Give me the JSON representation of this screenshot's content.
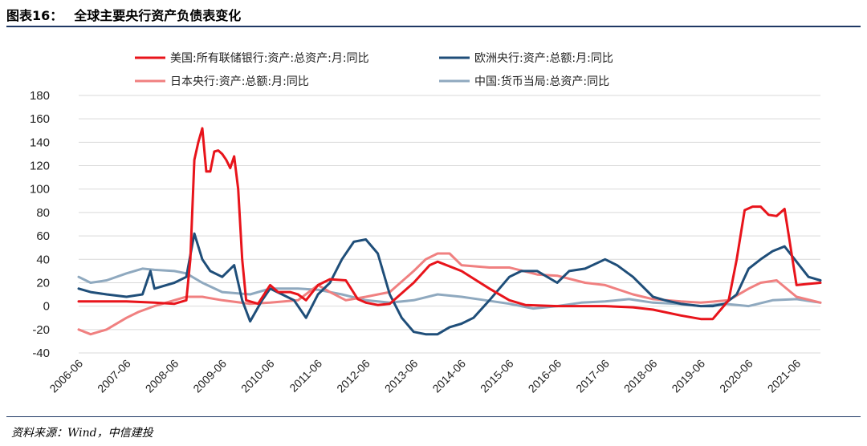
{
  "header": {
    "figure_label": "图表16：",
    "title": "全球主要央行资产负债表变化"
  },
  "footer": {
    "source": "资料来源：Wind，中信建投"
  },
  "chart_data": {
    "type": "line",
    "title": "全球主要央行资产负债表变化",
    "xlabel": "",
    "ylabel": "",
    "ylim": [
      -40,
      180
    ],
    "yticks": [
      -40,
      -20,
      0,
      20,
      40,
      60,
      80,
      100,
      120,
      140,
      160,
      180
    ],
    "x_tick_labels": [
      "2006-06",
      "2007-06",
      "2008-06",
      "2009-06",
      "2010-06",
      "2011-06",
      "2012-06",
      "2013-06",
      "2014-06",
      "2015-06",
      "2016-06",
      "2017-06",
      "2018-06",
      "2019-06",
      "2020-06",
      "2021-06"
    ],
    "x_range": [
      "2006-06",
      "2021-12"
    ],
    "grid": "horizontal",
    "legend_position": "top",
    "series": [
      {
        "name": "美国:所有联储银行:资产:总资产:月:同比",
        "color": "#e8141b",
        "points": [
          [
            "2006-06",
            4
          ],
          [
            "2007-01",
            4
          ],
          [
            "2007-06",
            4
          ],
          [
            "2008-01",
            3
          ],
          [
            "2008-06",
            2
          ],
          [
            "2008-09",
            5
          ],
          [
            "2008-10",
            40
          ],
          [
            "2008-11",
            125
          ],
          [
            "2008-12",
            140
          ],
          [
            "2009-01",
            152
          ],
          [
            "2009-02",
            115
          ],
          [
            "2009-03",
            115
          ],
          [
            "2009-04",
            132
          ],
          [
            "2009-05",
            133
          ],
          [
            "2009-06",
            130
          ],
          [
            "2009-07",
            125
          ],
          [
            "2009-08",
            118
          ],
          [
            "2009-09",
            128
          ],
          [
            "2009-10",
            100
          ],
          [
            "2009-11",
            40
          ],
          [
            "2009-12",
            5
          ],
          [
            "2010-03",
            2
          ],
          [
            "2010-06",
            18
          ],
          [
            "2010-08",
            12
          ],
          [
            "2010-11",
            12
          ],
          [
            "2011-01",
            10
          ],
          [
            "2011-03",
            5
          ],
          [
            "2011-06",
            18
          ],
          [
            "2011-09",
            23
          ],
          [
            "2012-01",
            22
          ],
          [
            "2012-04",
            6
          ],
          [
            "2012-06",
            3
          ],
          [
            "2012-09",
            1
          ],
          [
            "2012-12",
            2
          ],
          [
            "2013-06",
            20
          ],
          [
            "2013-10",
            35
          ],
          [
            "2013-12",
            38
          ],
          [
            "2014-06",
            30
          ],
          [
            "2015-01",
            15
          ],
          [
            "2015-06",
            5
          ],
          [
            "2015-10",
            1
          ],
          [
            "2016-06",
            0
          ],
          [
            "2017-06",
            0
          ],
          [
            "2018-01",
            -1
          ],
          [
            "2018-06",
            -3
          ],
          [
            "2019-01",
            -8
          ],
          [
            "2019-06",
            -11
          ],
          [
            "2019-09",
            -11
          ],
          [
            "2019-11",
            -3
          ],
          [
            "2020-01",
            5
          ],
          [
            "2020-03",
            40
          ],
          [
            "2020-05",
            82
          ],
          [
            "2020-07",
            85
          ],
          [
            "2020-09",
            85
          ],
          [
            "2020-11",
            78
          ],
          [
            "2021-01",
            77
          ],
          [
            "2021-03",
            83
          ],
          [
            "2021-05",
            40
          ],
          [
            "2021-06",
            18
          ],
          [
            "2021-09",
            19
          ],
          [
            "2021-12",
            20
          ]
        ]
      },
      {
        "name": "欧洲央行:资产:总额:月:同比",
        "color": "#1f4e79",
        "points": [
          [
            "2006-06",
            15
          ],
          [
            "2006-09",
            12
          ],
          [
            "2007-01",
            10
          ],
          [
            "2007-06",
            8
          ],
          [
            "2007-10",
            10
          ],
          [
            "2007-12",
            30
          ],
          [
            "2008-01",
            15
          ],
          [
            "2008-06",
            20
          ],
          [
            "2008-09",
            25
          ],
          [
            "2008-11",
            62
          ],
          [
            "2009-01",
            40
          ],
          [
            "2009-03",
            30
          ],
          [
            "2009-06",
            25
          ],
          [
            "2009-09",
            35
          ],
          [
            "2009-11",
            5
          ],
          [
            "2010-01",
            -13
          ],
          [
            "2010-04",
            5
          ],
          [
            "2010-06",
            15
          ],
          [
            "2010-09",
            10
          ],
          [
            "2010-12",
            5
          ],
          [
            "2011-03",
            -10
          ],
          [
            "2011-06",
            10
          ],
          [
            "2011-09",
            20
          ],
          [
            "2011-12",
            40
          ],
          [
            "2012-03",
            55
          ],
          [
            "2012-06",
            57
          ],
          [
            "2012-09",
            45
          ],
          [
            "2012-12",
            10
          ],
          [
            "2013-03",
            -10
          ],
          [
            "2013-06",
            -22
          ],
          [
            "2013-09",
            -24
          ],
          [
            "2013-12",
            -24
          ],
          [
            "2014-03",
            -18
          ],
          [
            "2014-06",
            -15
          ],
          [
            "2014-09",
            -10
          ],
          [
            "2015-01",
            5
          ],
          [
            "2015-06",
            25
          ],
          [
            "2015-09",
            30
          ],
          [
            "2016-01",
            30
          ],
          [
            "2016-06",
            20
          ],
          [
            "2016-09",
            30
          ],
          [
            "2017-01",
            32
          ],
          [
            "2017-06",
            40
          ],
          [
            "2017-09",
            35
          ],
          [
            "2018-01",
            25
          ],
          [
            "2018-06",
            8
          ],
          [
            "2018-09",
            5
          ],
          [
            "2019-01",
            2
          ],
          [
            "2019-06",
            0
          ],
          [
            "2019-09",
            0
          ],
          [
            "2019-12",
            2
          ],
          [
            "2020-03",
            10
          ],
          [
            "2020-06",
            32
          ],
          [
            "2020-09",
            40
          ],
          [
            "2020-12",
            47
          ],
          [
            "2021-03",
            51
          ],
          [
            "2021-06",
            38
          ],
          [
            "2021-09",
            25
          ],
          [
            "2021-12",
            22
          ]
        ]
      },
      {
        "name": "日本央行:资产:总额:月:同比",
        "color": "#f08080",
        "points": [
          [
            "2006-06",
            -20
          ],
          [
            "2006-09",
            -24
          ],
          [
            "2007-01",
            -20
          ],
          [
            "2007-06",
            -10
          ],
          [
            "2007-09",
            -5
          ],
          [
            "2008-01",
            0
          ],
          [
            "2008-06",
            5
          ],
          [
            "2008-09",
            8
          ],
          [
            "2009-01",
            8
          ],
          [
            "2009-06",
            5
          ],
          [
            "2010-01",
            2
          ],
          [
            "2010-06",
            3
          ],
          [
            "2011-01",
            5
          ],
          [
            "2011-06",
            18
          ],
          [
            "2011-09",
            12
          ],
          [
            "2012-01",
            5
          ],
          [
            "2012-06",
            8
          ],
          [
            "2012-12",
            12
          ],
          [
            "2013-06",
            30
          ],
          [
            "2013-09",
            40
          ],
          [
            "2013-12",
            45
          ],
          [
            "2014-03",
            45
          ],
          [
            "2014-06",
            35
          ],
          [
            "2015-01",
            33
          ],
          [
            "2015-06",
            33
          ],
          [
            "2016-01",
            27
          ],
          [
            "2016-06",
            26
          ],
          [
            "2017-01",
            20
          ],
          [
            "2017-06",
            18
          ],
          [
            "2018-01",
            10
          ],
          [
            "2018-06",
            6
          ],
          [
            "2019-01",
            4
          ],
          [
            "2019-06",
            3
          ],
          [
            "2020-01",
            5
          ],
          [
            "2020-06",
            15
          ],
          [
            "2020-09",
            20
          ],
          [
            "2021-01",
            22
          ],
          [
            "2021-06",
            8
          ],
          [
            "2021-12",
            3
          ]
        ]
      },
      {
        "name": "中国:货币当局:总资产:同比",
        "color": "#8fa9bf",
        "points": [
          [
            "2006-06",
            25
          ],
          [
            "2006-09",
            20
          ],
          [
            "2007-01",
            22
          ],
          [
            "2007-06",
            28
          ],
          [
            "2007-10",
            32
          ],
          [
            "2008-01",
            31
          ],
          [
            "2008-06",
            30
          ],
          [
            "2008-09",
            28
          ],
          [
            "2009-01",
            20
          ],
          [
            "2009-06",
            12
          ],
          [
            "2010-01",
            10
          ],
          [
            "2010-06",
            15
          ],
          [
            "2011-01",
            15
          ],
          [
            "2011-06",
            14
          ],
          [
            "2011-12",
            10
          ],
          [
            "2012-06",
            5
          ],
          [
            "2012-12",
            3
          ],
          [
            "2013-06",
            5
          ],
          [
            "2013-12",
            10
          ],
          [
            "2014-06",
            8
          ],
          [
            "2014-12",
            5
          ],
          [
            "2015-06",
            2
          ],
          [
            "2015-12",
            -2
          ],
          [
            "2016-06",
            0
          ],
          [
            "2016-12",
            3
          ],
          [
            "2017-06",
            4
          ],
          [
            "2017-12",
            6
          ],
          [
            "2018-06",
            3
          ],
          [
            "2018-12",
            2
          ],
          [
            "2019-06",
            0
          ],
          [
            "2019-12",
            2
          ],
          [
            "2020-06",
            0
          ],
          [
            "2020-12",
            5
          ],
          [
            "2021-06",
            6
          ],
          [
            "2021-12",
            3
          ]
        ]
      }
    ]
  }
}
